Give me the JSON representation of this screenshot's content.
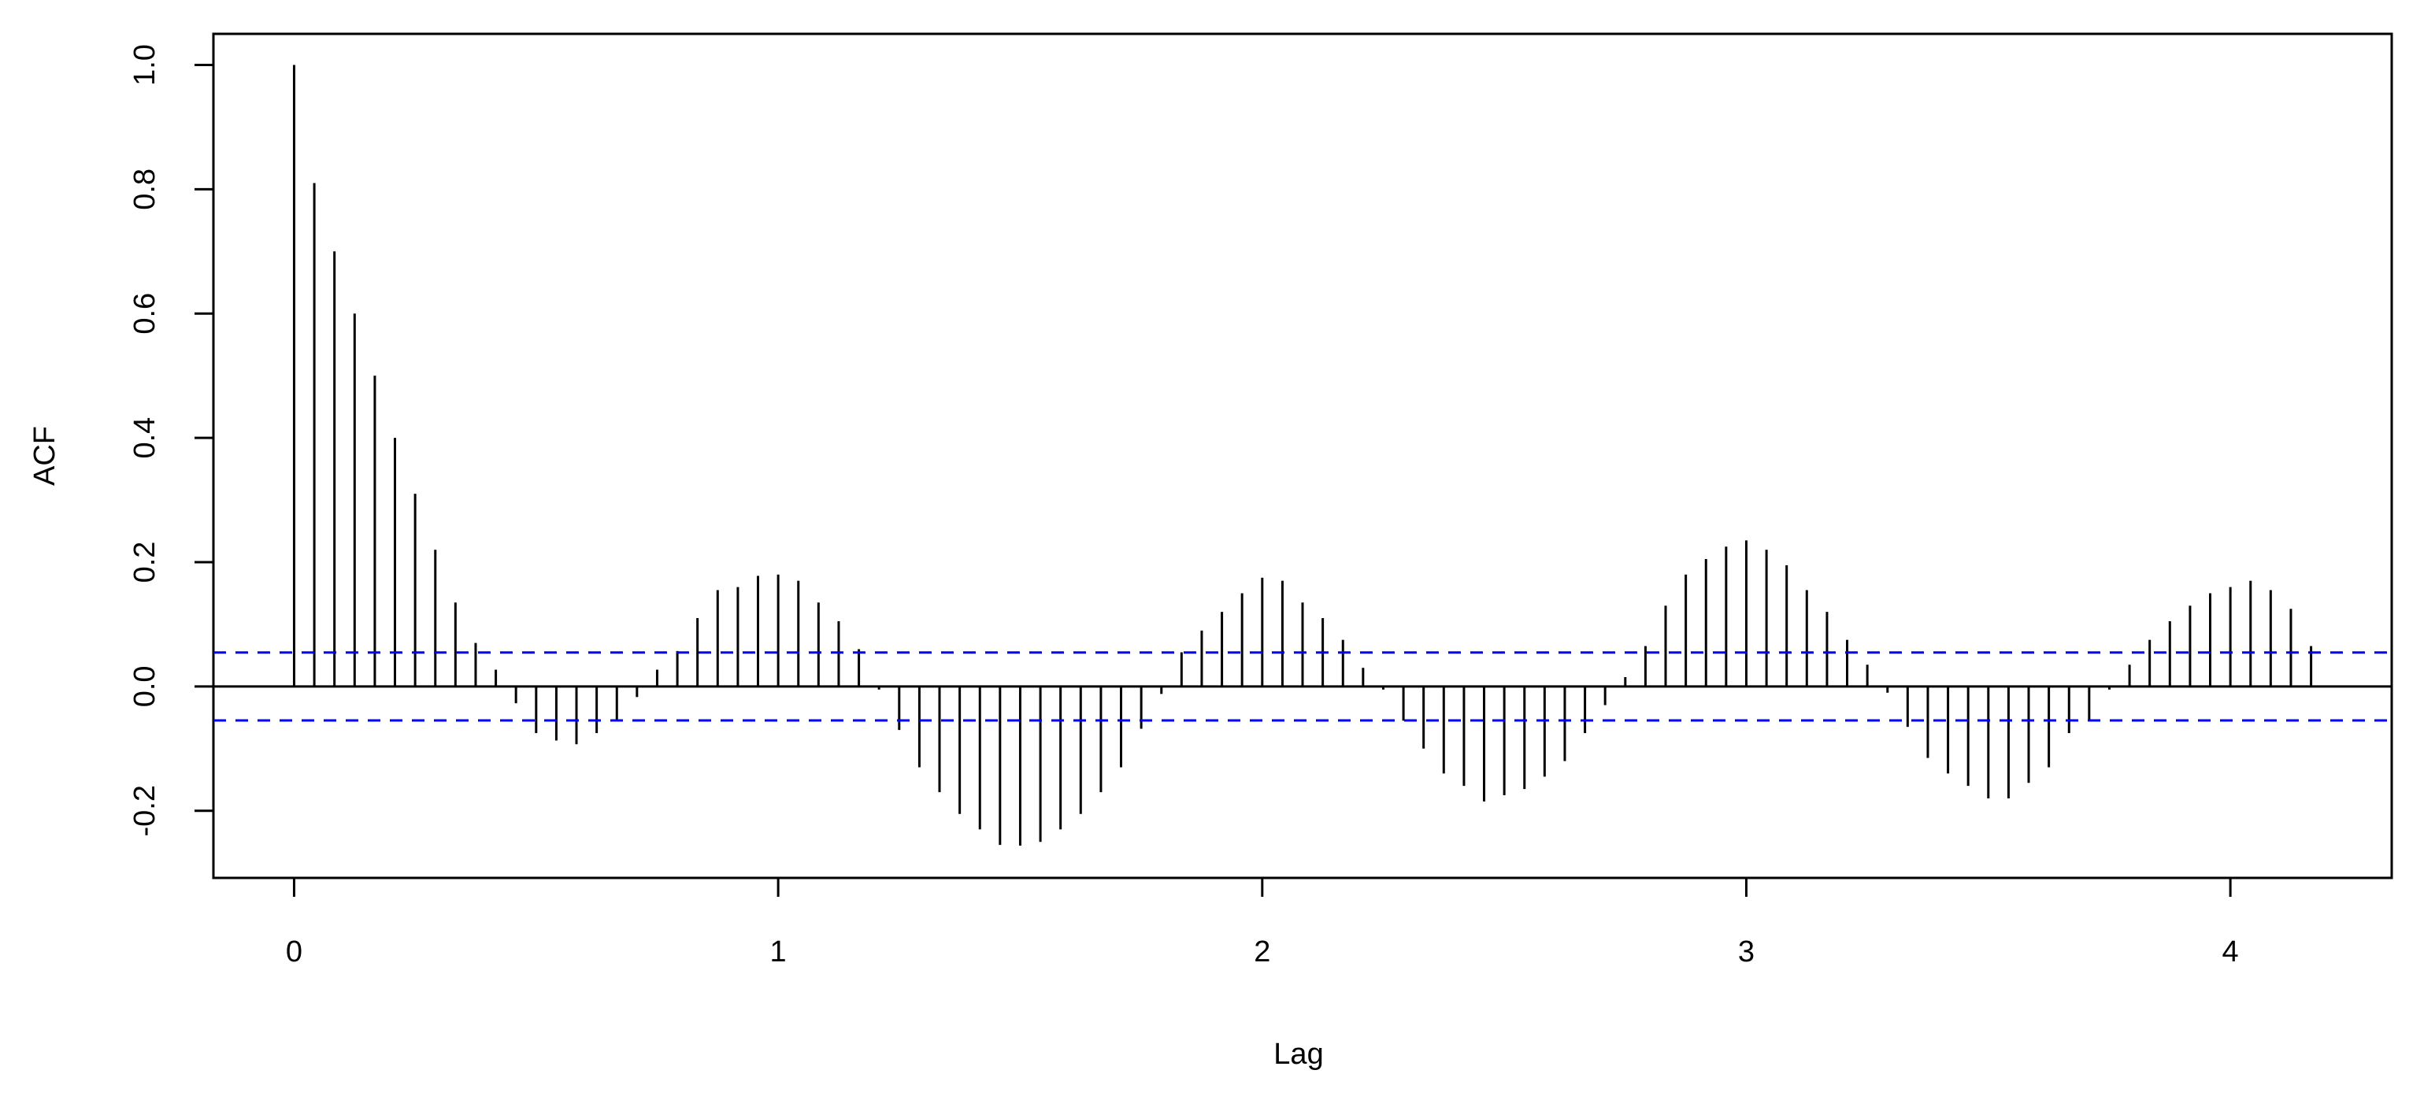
{
  "chart_data": {
    "type": "acf",
    "xlabel": "Lag",
    "ylabel": "ACF",
    "x": [
      0,
      0.0417,
      0.0833,
      0.125,
      0.1667,
      0.2083,
      0.25,
      0.2917,
      0.3333,
      0.375,
      0.4167,
      0.4583,
      0.5,
      0.5417,
      0.5833,
      0.625,
      0.6667,
      0.7083,
      0.75,
      0.7917,
      0.8333,
      0.875,
      0.9167,
      0.9583,
      1,
      1.0417,
      1.0833,
      1.125,
      1.1667,
      1.2083,
      1.25,
      1.2917,
      1.3333,
      1.375,
      1.4167,
      1.4583,
      1.5,
      1.5417,
      1.5833,
      1.625,
      1.6667,
      1.7083,
      1.75,
      1.7917,
      1.8333,
      1.875,
      1.9167,
      1.9583,
      2,
      2.0417,
      2.0833,
      2.125,
      2.1667,
      2.2083,
      2.25,
      2.2917,
      2.3333,
      2.375,
      2.4167,
      2.4583,
      2.5,
      2.5417,
      2.5833,
      2.625,
      2.6667,
      2.7083,
      2.75,
      2.7917,
      2.8333,
      2.875,
      2.9167,
      2.9583,
      3,
      3.0417,
      3.0833,
      3.125,
      3.1667,
      3.2083,
      3.25,
      3.2917,
      3.3333,
      3.375,
      3.4167,
      3.4583,
      3.5,
      3.5417,
      3.5833,
      3.625,
      3.6667,
      3.7083,
      3.75,
      3.7917,
      3.8333,
      3.875,
      3.9167,
      3.9583,
      4,
      4.0417,
      4.0833,
      4.125,
      4.1667
    ],
    "values": [
      1.0,
      0.81,
      0.7,
      0.6,
      0.5,
      0.4,
      0.31,
      0.22,
      0.135,
      0.07,
      0.027,
      -0.027,
      -0.075,
      -0.087,
      -0.093,
      -0.075,
      -0.055,
      -0.017,
      0.027,
      0.057,
      0.11,
      0.155,
      0.16,
      0.178,
      0.18,
      0.17,
      0.135,
      0.105,
      0.06,
      -0.005,
      -0.07,
      -0.13,
      -0.17,
      -0.205,
      -0.23,
      -0.255,
      -0.256,
      -0.25,
      -0.23,
      -0.205,
      -0.17,
      -0.13,
      -0.068,
      -0.012,
      0.055,
      0.09,
      0.12,
      0.15,
      0.175,
      0.17,
      0.135,
      0.11,
      0.075,
      0.03,
      -0.005,
      -0.055,
      -0.1,
      -0.14,
      -0.16,
      -0.185,
      -0.175,
      -0.165,
      -0.145,
      -0.12,
      -0.075,
      -0.03,
      0.015,
      0.065,
      0.13,
      0.18,
      0.205,
      0.225,
      0.235,
      0.22,
      0.195,
      0.155,
      0.12,
      0.075,
      0.035,
      -0.01,
      -0.065,
      -0.115,
      -0.14,
      -0.16,
      -0.18,
      -0.18,
      -0.155,
      -0.13,
      -0.075,
      -0.055,
      -0.005,
      0.035,
      0.075,
      0.105,
      0.13,
      0.15,
      0.16,
      0.17,
      0.155,
      0.125,
      0.065
    ],
    "color": "#000000",
    "confidence_bound": 0.0546,
    "confidence_color": "#0000ff",
    "xlim": [
      -0.1667,
      4.3333
    ],
    "xticks": [
      0,
      1,
      2,
      3,
      4
    ],
    "ylim": [
      -0.308,
      1.05
    ],
    "yticks": [
      -0.2,
      {
        "value": 0,
        "label": "0.0"
      },
      0.2,
      0.4,
      0.6,
      0.8,
      {
        "value": 1,
        "label": "1.0"
      }
    ]
  }
}
